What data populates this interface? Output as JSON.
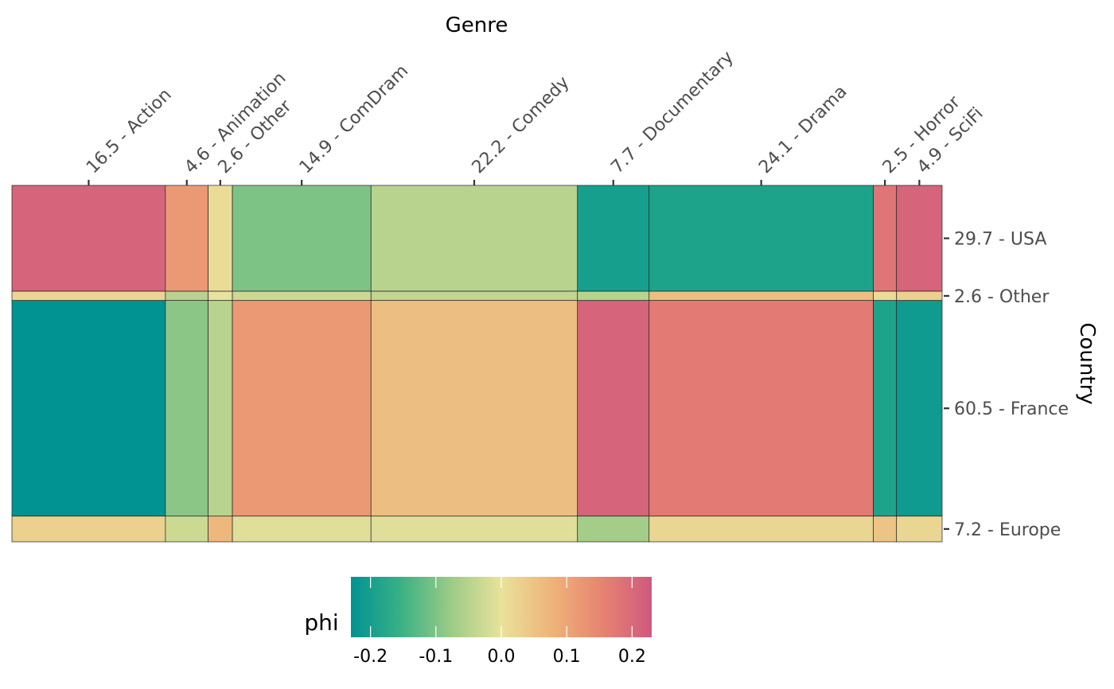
{
  "chart_data": {
    "type": "heatmap",
    "subtype": "mosaic",
    "x_title": "Genre",
    "y_title": "Country",
    "columns": [
      {
        "label": "16.5 - Action",
        "share": 16.5
      },
      {
        "label": "4.6 - Animation",
        "share": 4.6
      },
      {
        "label": "2.6 - Other",
        "share": 2.6
      },
      {
        "label": "14.9 - ComDram",
        "share": 14.9
      },
      {
        "label": "22.2 - Comedy",
        "share": 22.2
      },
      {
        "label": "7.7 - Documentary",
        "share": 7.7
      },
      {
        "label": "24.1 - Drama",
        "share": 24.1
      },
      {
        "label": "2.5 - Horror",
        "share": 2.5
      },
      {
        "label": "4.9 - SciFi",
        "share": 4.9
      }
    ],
    "rows": [
      {
        "label": "29.7 - USA",
        "share": 29.7
      },
      {
        "label": "2.6 - Other",
        "share": 2.6
      },
      {
        "label": "60.5 - France",
        "share": 60.5
      },
      {
        "label": "7.2 - Europe",
        "share": 7.2
      }
    ],
    "phi": [
      [
        0.21,
        0.12,
        0.01,
        -0.1,
        -0.05,
        -0.2,
        -0.19,
        0.18,
        0.21
      ],
      [
        0.02,
        -0.05,
        0.0,
        -0.03,
        -0.04,
        -0.05,
        0.06,
        0.01,
        0.03
      ],
      [
        -0.23,
        -0.09,
        -0.05,
        0.12,
        0.06,
        0.21,
        0.17,
        -0.19,
        -0.21
      ],
      [
        0.03,
        -0.03,
        0.07,
        -0.01,
        -0.01,
        -0.07,
        0.02,
        0.05,
        0.02
      ]
    ],
    "legend": {
      "title": "phi",
      "min": -0.23,
      "max": 0.23,
      "ticks": [
        -0.2,
        -0.1,
        0.0,
        0.1,
        0.2
      ],
      "tick_labels": [
        "-0.2",
        "-0.1",
        "0.0",
        "0.1",
        "0.2"
      ],
      "position": "bottom"
    },
    "palette": [
      "#009392",
      "#39b185",
      "#9ccb86",
      "#e9e29c",
      "#eeb479",
      "#e88471",
      "#cf597e"
    ]
  }
}
